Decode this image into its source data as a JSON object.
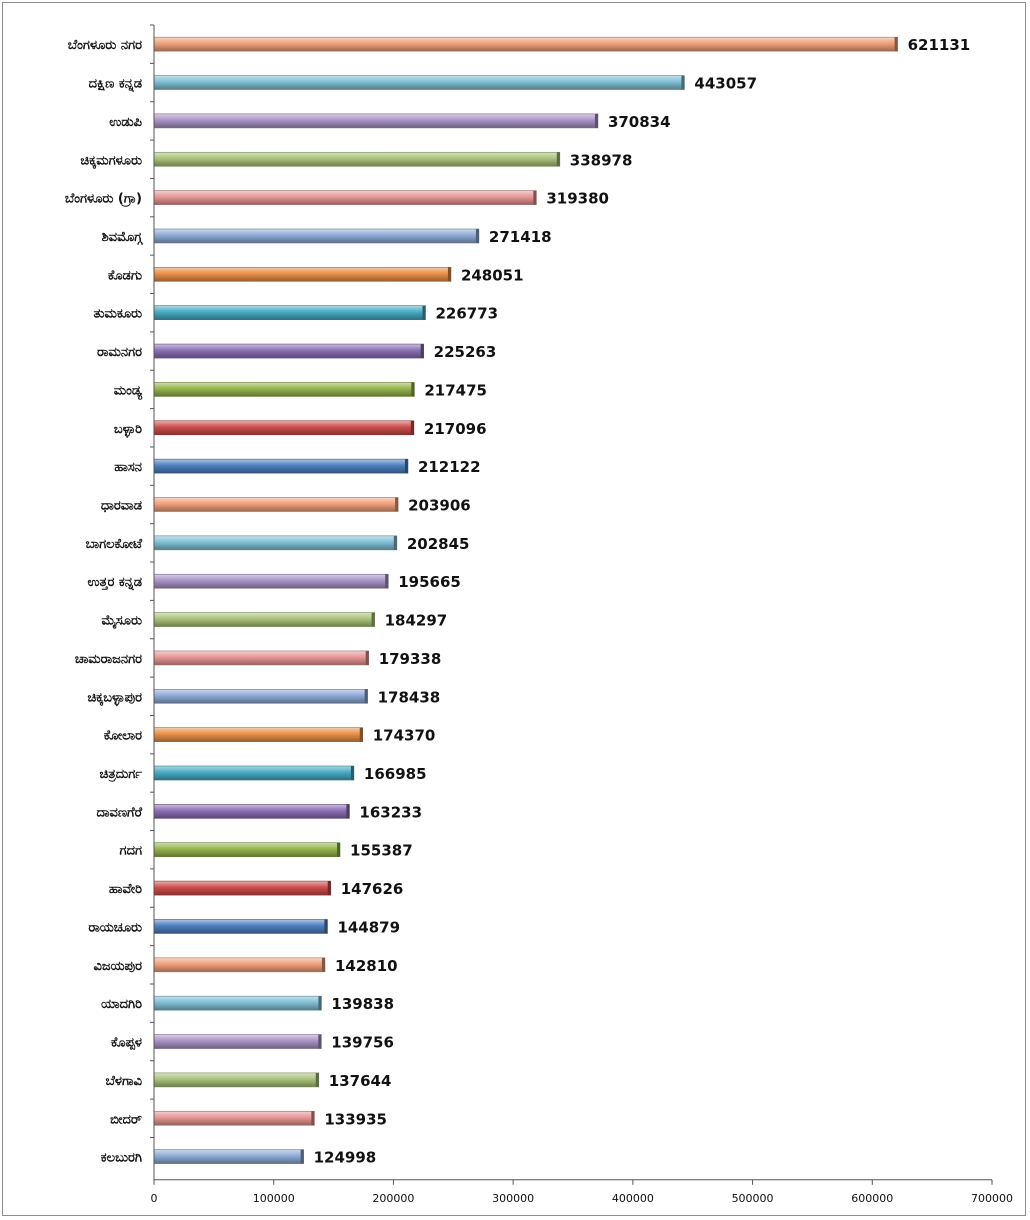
{
  "chart_data": {
    "type": "bar",
    "orientation": "horizontal",
    "title": "",
    "xlabel": "",
    "ylabel": "",
    "xlim": [
      0,
      700000
    ],
    "x_ticks": [
      0,
      100000,
      200000,
      300000,
      400000,
      500000,
      600000,
      700000
    ],
    "x_tick_labels": [
      "0",
      "100000",
      "200000",
      "300000",
      "400000",
      "500000",
      "600000",
      "700000"
    ],
    "grid": false,
    "legend": "none",
    "data_labels": true,
    "categories": [
      "ಬೆಂಗಳೂರು ನಗರ",
      "ದಕ್ಷಿಣ ಕನ್ನಡ",
      "ಉಡುಪಿ",
      "ಚಿಕ್ಕಮಗಳೂರು",
      "ಬೆಂಗಳೂರು (ಗ್ರಾ)",
      "ಶಿವಮೊಗ್ಗ",
      "ಕೊಡಗು",
      "ತುಮಕೂರು",
      "ರಾಮನಗರ",
      "ಮಂಡ್ಯ",
      "ಬಳ್ಳಾರಿ",
      "ಹಾಸನ",
      "ಧಾರವಾಡ",
      "ಬಾಗಲಕೋಟೆ",
      "ಉತ್ತರ ಕನ್ನಡ",
      "ಮೈಸೂರು",
      "ಚಾಮರಾಜನಗರ",
      "ಚಿಕ್ಕಬಳ್ಳಾಪುರ",
      "ಕೋಲಾರ",
      "ಚಿತ್ರದುರ್ಗ",
      "ದಾವಣಗೆರೆ",
      "ಗದಗ",
      "ಹಾವೇರಿ",
      "ರಾಯಚೂರು",
      "ವಿಜಯಪುರ",
      "ಯಾದಗಿರಿ",
      "ಕೊಪ್ಪಳ",
      "ಬೆಳಗಾವಿ",
      "ಬೀದರ್",
      "ಕಲಬುರಗಿ"
    ],
    "values": [
      621131,
      443057,
      370834,
      338978,
      319380,
      271418,
      248051,
      226773,
      225263,
      217475,
      217096,
      212122,
      203906,
      202845,
      195665,
      184297,
      179338,
      178438,
      174370,
      166985,
      163233,
      155387,
      147626,
      144879,
      142810,
      139838,
      139756,
      137644,
      133935,
      124998
    ],
    "value_labels": [
      "621131",
      "443057",
      "370834",
      "338978",
      "319380",
      "271418",
      "248051",
      "226773",
      "225263",
      "217475",
      "217096",
      "212122",
      "203906",
      "202845",
      "195665",
      "184297",
      "179338",
      "178438",
      "174370",
      "166985",
      "163233",
      "155387",
      "147626",
      "144879",
      "142810",
      "139838",
      "139756",
      "137644",
      "133935",
      "124998"
    ],
    "colors": [
      "#f0a07a",
      "#7fbfd4",
      "#a993c6",
      "#a9c27a",
      "#e79595",
      "#8daad6",
      "#e98f46",
      "#46abc4",
      "#8b6fb4",
      "#94b44c",
      "#cd4d4b",
      "#4d7fc0"
    ]
  }
}
